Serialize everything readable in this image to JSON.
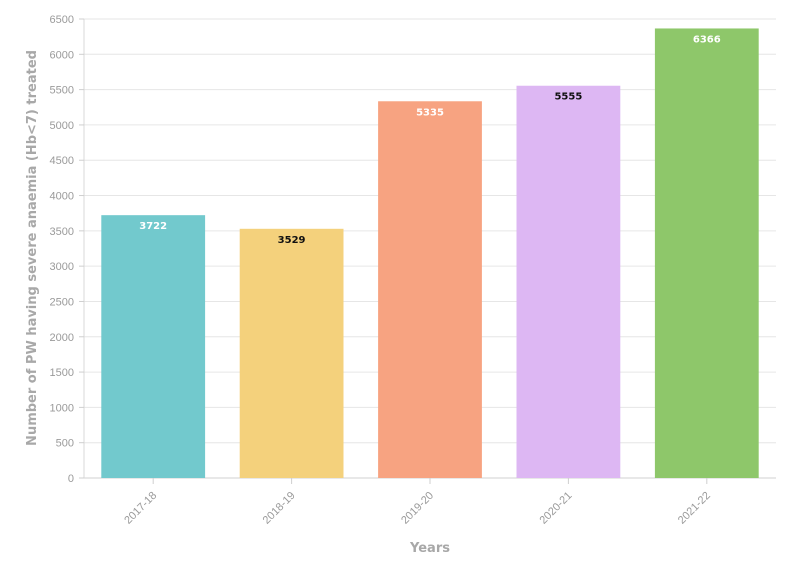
{
  "chart_data": {
    "type": "bar",
    "title": "",
    "xlabel": "Years",
    "ylabel": "Number of PW having severe anaemia (Hb<7) treated",
    "categories": [
      "2017-18",
      "2018-19",
      "2019-20",
      "2020-21",
      "2021-22"
    ],
    "values": [
      3722,
      3529,
      5335,
      5555,
      6366
    ],
    "ylim": [
      0,
      6500
    ],
    "yticks": [
      0,
      500,
      1000,
      1500,
      2000,
      2500,
      3000,
      3500,
      4000,
      4500,
      5000,
      5500,
      6000,
      6500
    ],
    "colors": [
      "#72c9cd",
      "#f4d17c",
      "#f7a381",
      "#ddb7f3",
      "#8ec76a"
    ],
    "data_label_colors": [
      "#ffffff",
      "#111111",
      "#ffffff",
      "#111111",
      "#ffffff"
    ],
    "grid": true,
    "legend": "none"
  }
}
